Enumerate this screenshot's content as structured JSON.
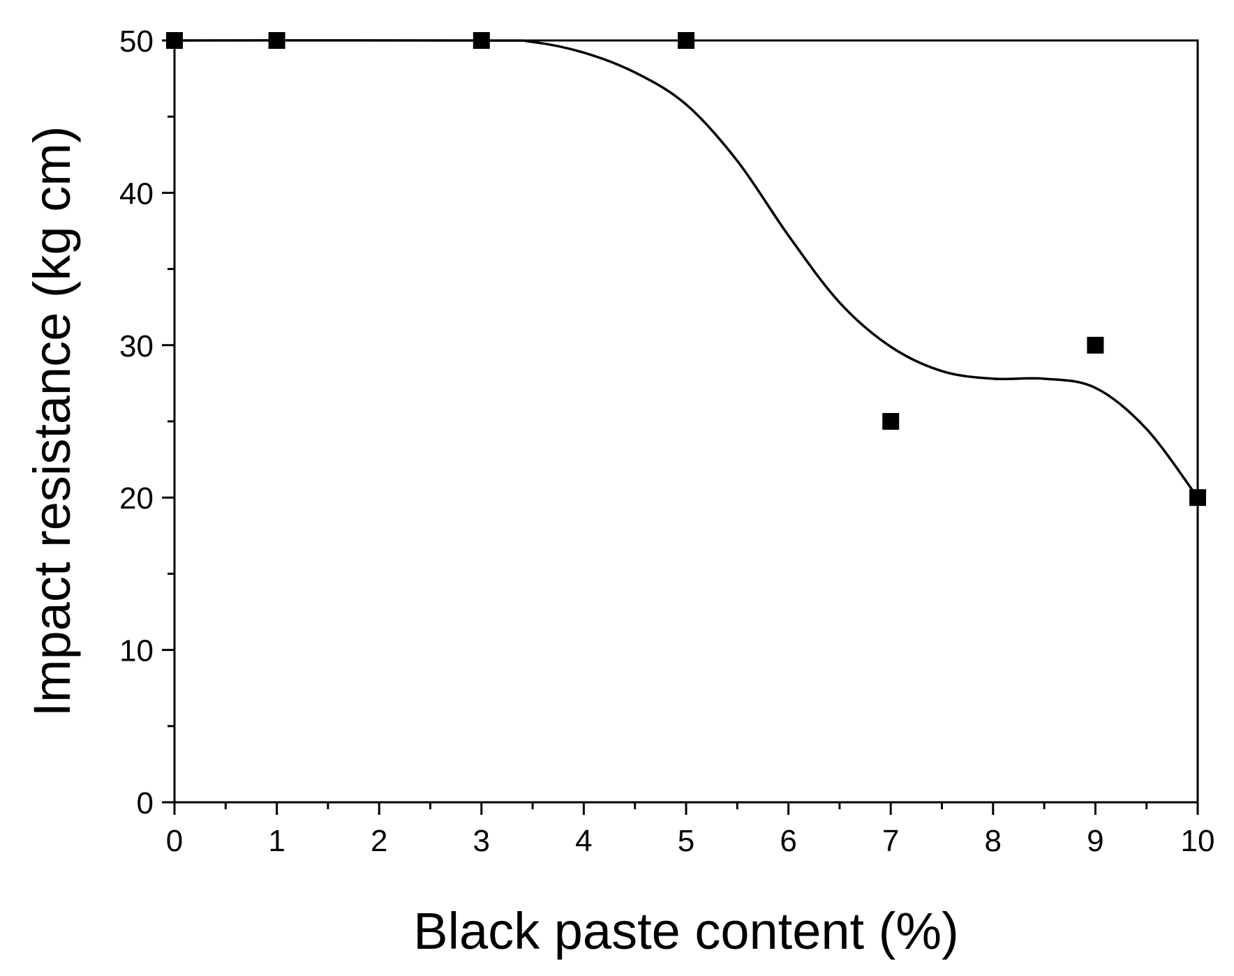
{
  "chart_data": {
    "type": "scatter",
    "title": "",
    "xlabel": "Black paste content (%)",
    "ylabel": "Impact resistance (kg cm)",
    "xlim": [
      0,
      10
    ],
    "ylim": [
      0,
      50
    ],
    "x_ticks": [
      "0",
      "1",
      "2",
      "3",
      "4",
      "5",
      "6",
      "7",
      "8",
      "9",
      "10"
    ],
    "y_ticks": [
      "0",
      "10",
      "20",
      "30",
      "40",
      "50"
    ],
    "grid": false,
    "legend": "none",
    "series": [
      {
        "kind": "points",
        "marker": "square",
        "color": "#000000",
        "x": [
          0,
          1,
          3,
          5,
          7,
          9,
          10
        ],
        "y": [
          50,
          50,
          50,
          50,
          25,
          30,
          20
        ]
      },
      {
        "kind": "fit-line",
        "color": "#000000",
        "x": [
          0,
          3,
          3.5,
          4,
          4.5,
          5,
          5.5,
          6,
          6.5,
          7,
          7.5,
          8,
          8.5,
          9,
          9.5,
          10
        ],
        "y": [
          50,
          50,
          49.9,
          49.2,
          47.9,
          45.8,
          42.1,
          37.2,
          32.8,
          29.9,
          28.3,
          27.8,
          27.8,
          27.2,
          24.5,
          20
        ]
      }
    ]
  }
}
